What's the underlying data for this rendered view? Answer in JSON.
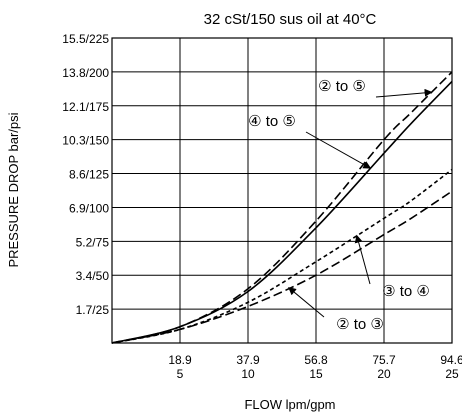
{
  "chart_data": {
    "type": "line",
    "title": "32 cSt/150 sus oil at 40°C",
    "xlabel": "FLOW lpm/gpm",
    "ylabel": "PRESSURE DROP bar/psi",
    "xlim": [
      0,
      25
    ],
    "ylim": [
      0,
      225
    ],
    "grid": true,
    "x_ticks": [
      {
        "value": 5,
        "top": "18.9",
        "bottom": "5"
      },
      {
        "value": 10,
        "top": "37.9",
        "bottom": "10"
      },
      {
        "value": 15,
        "top": "56.8",
        "bottom": "15"
      },
      {
        "value": 20,
        "top": "75.7",
        "bottom": "20"
      },
      {
        "value": 25,
        "top": "94.6",
        "bottom": "25"
      }
    ],
    "y_ticks": [
      {
        "value": 25,
        "label": "1.7/25"
      },
      {
        "value": 50,
        "label": "3.4/50"
      },
      {
        "value": 75,
        "label": "5.2/75"
      },
      {
        "value": 100,
        "label": "6.9/100"
      },
      {
        "value": 125,
        "label": "8.6/125"
      },
      {
        "value": 150,
        "label": "10.3/150"
      },
      {
        "value": 175,
        "label": "12.1/175"
      },
      {
        "value": 200,
        "label": "13.8/200"
      },
      {
        "value": 225,
        "label": "15.5/225"
      }
    ],
    "series": [
      {
        "name": "② to ⑤",
        "style": "long-dash",
        "x": [
          0,
          5,
          10,
          15,
          20,
          22,
          25
        ],
        "y": [
          0,
          12,
          40,
          90,
          150,
          170,
          200
        ]
      },
      {
        "name": "④ to ⑤",
        "style": "solid",
        "x": [
          0,
          5,
          10,
          15,
          20,
          22,
          25
        ],
        "y": [
          0,
          12,
          38,
          85,
          140,
          162,
          193
        ]
      },
      {
        "name": "③ to ④",
        "style": "short-dash",
        "x": [
          0,
          5,
          10,
          15,
          20,
          22,
          25
        ],
        "y": [
          0,
          10,
          30,
          60,
          92,
          105,
          128
        ]
      },
      {
        "name": "② to ③",
        "style": "long-dash",
        "x": [
          0,
          5,
          10,
          15,
          20,
          22,
          25
        ],
        "y": [
          0,
          10,
          27,
          50,
          80,
          92,
          112
        ]
      }
    ],
    "annotations": [
      {
        "text": "② to ⑤",
        "target_series": 0,
        "target_x": 23.5
      },
      {
        "text": "④ to ⑤",
        "target_series": 1,
        "target_x": 19.0
      },
      {
        "text": "③ to ④",
        "target_series": 2,
        "target_x": 18.0
      },
      {
        "text": "② to ③",
        "target_series": 3,
        "target_x": 13.0
      }
    ]
  }
}
